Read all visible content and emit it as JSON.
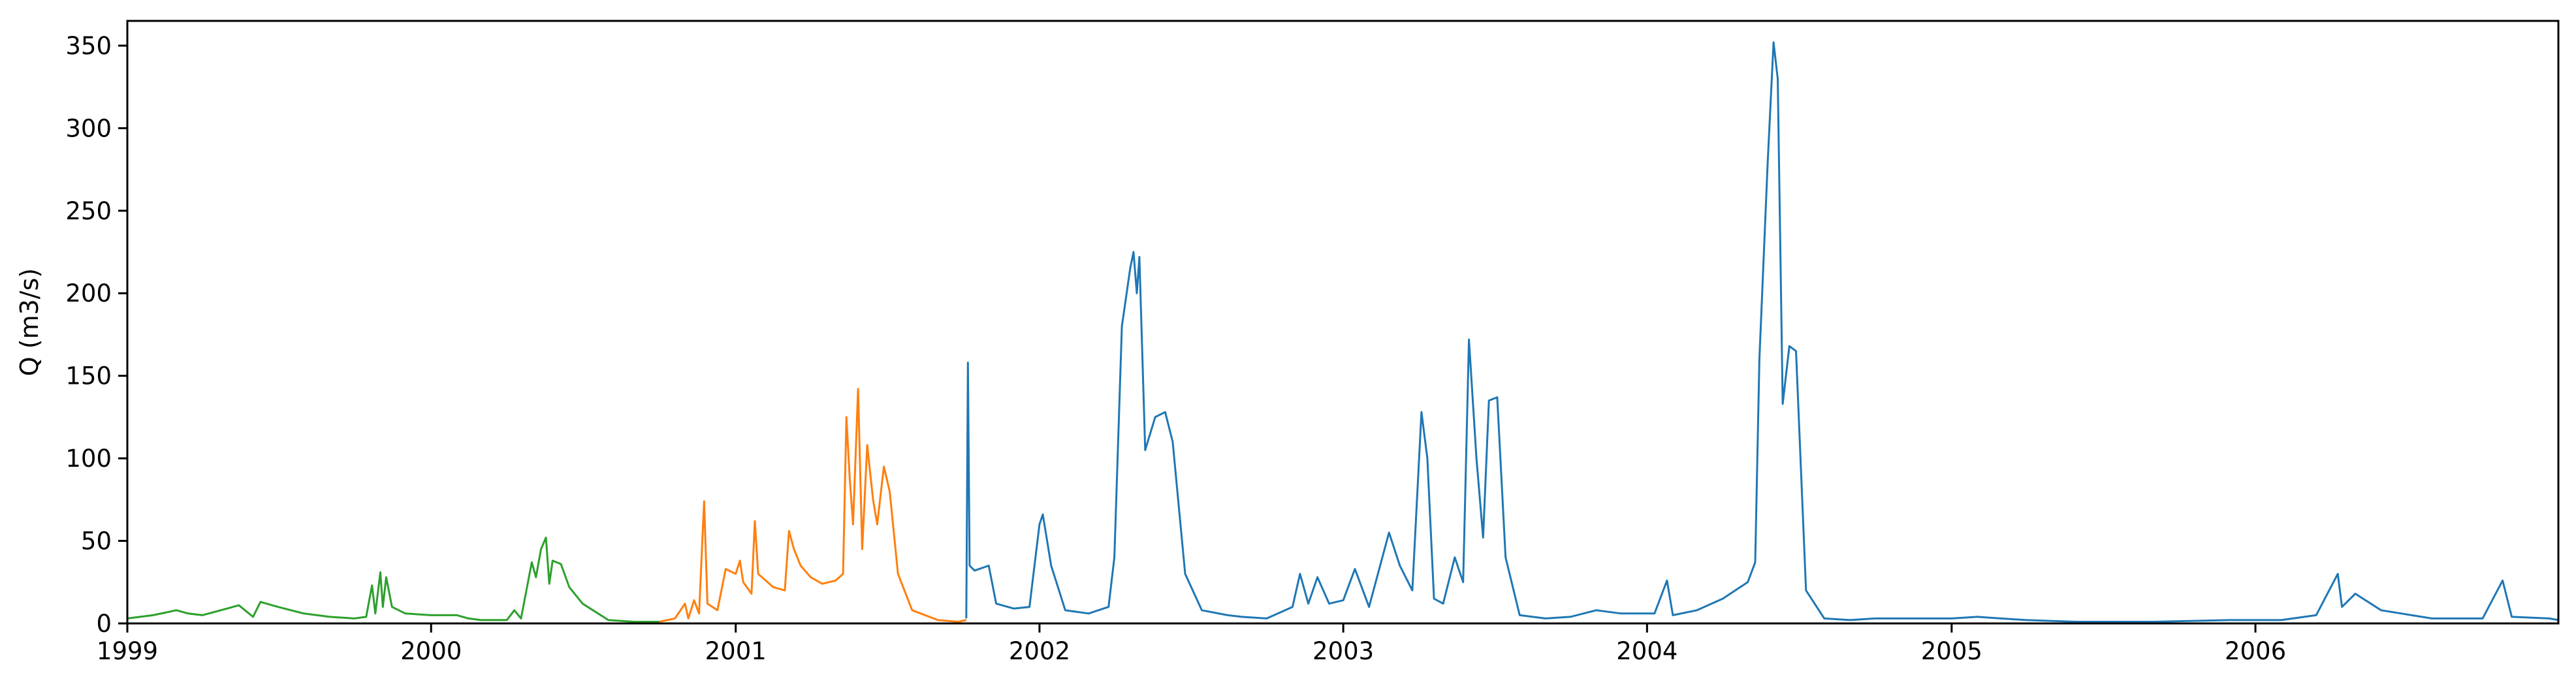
{
  "chart_data": {
    "type": "line",
    "title": "",
    "xlabel": "",
    "ylabel": "Q (m3/s)",
    "xlim": [
      "1999-01-01",
      "2006-12-31"
    ],
    "ylim": [
      0,
      365
    ],
    "yticks": [
      0,
      50,
      100,
      150,
      200,
      250,
      300,
      350
    ],
    "xticks": [
      "1999",
      "2000",
      "2001",
      "2002",
      "2003",
      "2004",
      "2005",
      "2006"
    ],
    "grid": false,
    "legend": "none",
    "series": [
      {
        "color": "#2ca02c",
        "points": [
          [
            "1999-01-01",
            3
          ],
          [
            "1999-02-01",
            5
          ],
          [
            "1999-03-01",
            8
          ],
          [
            "1999-03-15",
            6
          ],
          [
            "1999-04-01",
            5
          ],
          [
            "1999-05-01",
            9
          ],
          [
            "1999-05-15",
            11
          ],
          [
            "1999-06-01",
            4
          ],
          [
            "1999-06-10",
            13
          ],
          [
            "1999-07-01",
            10
          ],
          [
            "1999-08-01",
            6
          ],
          [
            "1999-09-01",
            4
          ],
          [
            "1999-10-01",
            3
          ],
          [
            "1999-10-15",
            4
          ],
          [
            "1999-10-22",
            23
          ],
          [
            "1999-10-26",
            6
          ],
          [
            "1999-11-01",
            31
          ],
          [
            "1999-11-04",
            10
          ],
          [
            "1999-11-08",
            28
          ],
          [
            "1999-11-15",
            10
          ],
          [
            "1999-12-01",
            6
          ],
          [
            "2000-01-01",
            5
          ],
          [
            "2000-02-01",
            5
          ],
          [
            "2000-02-15",
            3
          ],
          [
            "2000-03-01",
            2
          ],
          [
            "2000-04-01",
            2
          ],
          [
            "2000-04-10",
            8
          ],
          [
            "2000-04-18",
            3
          ],
          [
            "2000-05-01",
            37
          ],
          [
            "2000-05-06",
            28
          ],
          [
            "2000-05-12",
            45
          ],
          [
            "2000-05-18",
            52
          ],
          [
            "2000-05-22",
            24
          ],
          [
            "2000-05-26",
            38
          ],
          [
            "2000-06-05",
            36
          ],
          [
            "2000-06-15",
            22
          ],
          [
            "2000-07-01",
            12
          ],
          [
            "2000-08-01",
            2
          ],
          [
            "2000-09-01",
            1
          ],
          [
            "2000-10-01",
            1
          ]
        ]
      },
      {
        "color": "#ff7f0e",
        "points": [
          [
            "2000-10-01",
            1
          ],
          [
            "2000-10-20",
            3
          ],
          [
            "2000-11-01",
            12
          ],
          [
            "2000-11-05",
            3
          ],
          [
            "2000-11-12",
            14
          ],
          [
            "2000-11-18",
            6
          ],
          [
            "2000-11-24",
            74
          ],
          [
            "2000-11-28",
            12
          ],
          [
            "2000-12-10",
            8
          ],
          [
            "2000-12-20",
            33
          ],
          [
            "2001-01-01",
            30
          ],
          [
            "2001-01-06",
            38
          ],
          [
            "2001-01-10",
            25
          ],
          [
            "2001-01-20",
            18
          ],
          [
            "2001-01-24",
            62
          ],
          [
            "2001-01-28",
            30
          ],
          [
            "2001-02-15",
            22
          ],
          [
            "2001-03-01",
            20
          ],
          [
            "2001-03-06",
            56
          ],
          [
            "2001-03-12",
            45
          ],
          [
            "2001-03-20",
            35
          ],
          [
            "2001-04-01",
            28
          ],
          [
            "2001-04-15",
            24
          ],
          [
            "2001-05-01",
            26
          ],
          [
            "2001-05-10",
            30
          ],
          [
            "2001-05-14",
            125
          ],
          [
            "2001-05-18",
            88
          ],
          [
            "2001-05-22",
            60
          ],
          [
            "2001-05-28",
            142
          ],
          [
            "2001-06-02",
            45
          ],
          [
            "2001-06-08",
            108
          ],
          [
            "2001-06-15",
            75
          ],
          [
            "2001-06-20",
            60
          ],
          [
            "2001-06-28",
            95
          ],
          [
            "2001-07-05",
            80
          ],
          [
            "2001-07-15",
            30
          ],
          [
            "2001-08-01",
            8
          ],
          [
            "2001-09-01",
            2
          ],
          [
            "2001-09-25",
            1
          ],
          [
            "2001-10-05",
            2
          ]
        ]
      },
      {
        "color": "#1f77b4",
        "points": [
          [
            "2001-10-05",
            3
          ],
          [
            "2001-10-07",
            158
          ],
          [
            "2001-10-09",
            35
          ],
          [
            "2001-10-15",
            32
          ],
          [
            "2001-11-01",
            35
          ],
          [
            "2001-11-10",
            12
          ],
          [
            "2001-12-01",
            9
          ],
          [
            "2001-12-20",
            10
          ],
          [
            "2002-01-01",
            60
          ],
          [
            "2002-01-05",
            66
          ],
          [
            "2002-01-15",
            35
          ],
          [
            "2002-02-01",
            8
          ],
          [
            "2002-03-01",
            6
          ],
          [
            "2002-03-25",
            10
          ],
          [
            "2002-04-01",
            40
          ],
          [
            "2002-04-10",
            180
          ],
          [
            "2002-04-20",
            215
          ],
          [
            "2002-04-24",
            225
          ],
          [
            "2002-04-28",
            200
          ],
          [
            "2002-05-01",
            222
          ],
          [
            "2002-05-08",
            105
          ],
          [
            "2002-05-20",
            125
          ],
          [
            "2002-06-01",
            128
          ],
          [
            "2002-06-10",
            110
          ],
          [
            "2002-06-25",
            30
          ],
          [
            "2002-07-15",
            8
          ],
          [
            "2002-08-15",
            5
          ],
          [
            "2002-09-01",
            4
          ],
          [
            "2002-10-01",
            3
          ],
          [
            "2002-11-01",
            10
          ],
          [
            "2002-11-10",
            30
          ],
          [
            "2002-11-20",
            12
          ],
          [
            "2002-12-01",
            28
          ],
          [
            "2002-12-15",
            12
          ],
          [
            "2003-01-01",
            14
          ],
          [
            "2003-01-15",
            33
          ],
          [
            "2003-02-01",
            10
          ],
          [
            "2003-02-25",
            55
          ],
          [
            "2003-03-10",
            35
          ],
          [
            "2003-03-25",
            20
          ],
          [
            "2003-04-05",
            128
          ],
          [
            "2003-04-12",
            100
          ],
          [
            "2003-04-20",
            15
          ],
          [
            "2003-05-01",
            12
          ],
          [
            "2003-05-15",
            40
          ],
          [
            "2003-05-25",
            25
          ],
          [
            "2003-06-01",
            172
          ],
          [
            "2003-06-10",
            100
          ],
          [
            "2003-06-18",
            52
          ],
          [
            "2003-06-25",
            135
          ],
          [
            "2003-07-05",
            137
          ],
          [
            "2003-07-15",
            40
          ],
          [
            "2003-08-01",
            5
          ],
          [
            "2003-09-01",
            3
          ],
          [
            "2003-10-01",
            4
          ],
          [
            "2003-11-01",
            8
          ],
          [
            "2003-12-01",
            6
          ],
          [
            "2004-01-10",
            6
          ],
          [
            "2004-01-25",
            26
          ],
          [
            "2004-02-01",
            5
          ],
          [
            "2004-03-01",
            8
          ],
          [
            "2004-04-01",
            15
          ],
          [
            "2004-05-01",
            25
          ],
          [
            "2004-05-10",
            37
          ],
          [
            "2004-05-15",
            160
          ],
          [
            "2004-05-25",
            280
          ],
          [
            "2004-06-01",
            352
          ],
          [
            "2004-06-06",
            330
          ],
          [
            "2004-06-12",
            133
          ],
          [
            "2004-06-20",
            168
          ],
          [
            "2004-06-28",
            165
          ],
          [
            "2004-07-10",
            20
          ],
          [
            "2004-08-01",
            3
          ],
          [
            "2004-09-01",
            2
          ],
          [
            "2004-10-01",
            3
          ],
          [
            "2004-11-01",
            3
          ],
          [
            "2004-12-01",
            3
          ],
          [
            "2005-01-01",
            3
          ],
          [
            "2005-02-01",
            4
          ],
          [
            "2005-03-01",
            3
          ],
          [
            "2005-04-01",
            2
          ],
          [
            "2005-06-01",
            1
          ],
          [
            "2005-09-01",
            1
          ],
          [
            "2005-12-01",
            2
          ],
          [
            "2006-02-01",
            2
          ],
          [
            "2006-03-15",
            5
          ],
          [
            "2006-04-10",
            30
          ],
          [
            "2006-04-15",
            10
          ],
          [
            "2006-05-01",
            18
          ],
          [
            "2006-06-01",
            8
          ],
          [
            "2006-08-01",
            3
          ],
          [
            "2006-10-01",
            3
          ],
          [
            "2006-10-25",
            26
          ],
          [
            "2006-11-05",
            4
          ],
          [
            "2006-12-20",
            3
          ],
          [
            "2006-12-31",
            2
          ]
        ]
      }
    ]
  }
}
